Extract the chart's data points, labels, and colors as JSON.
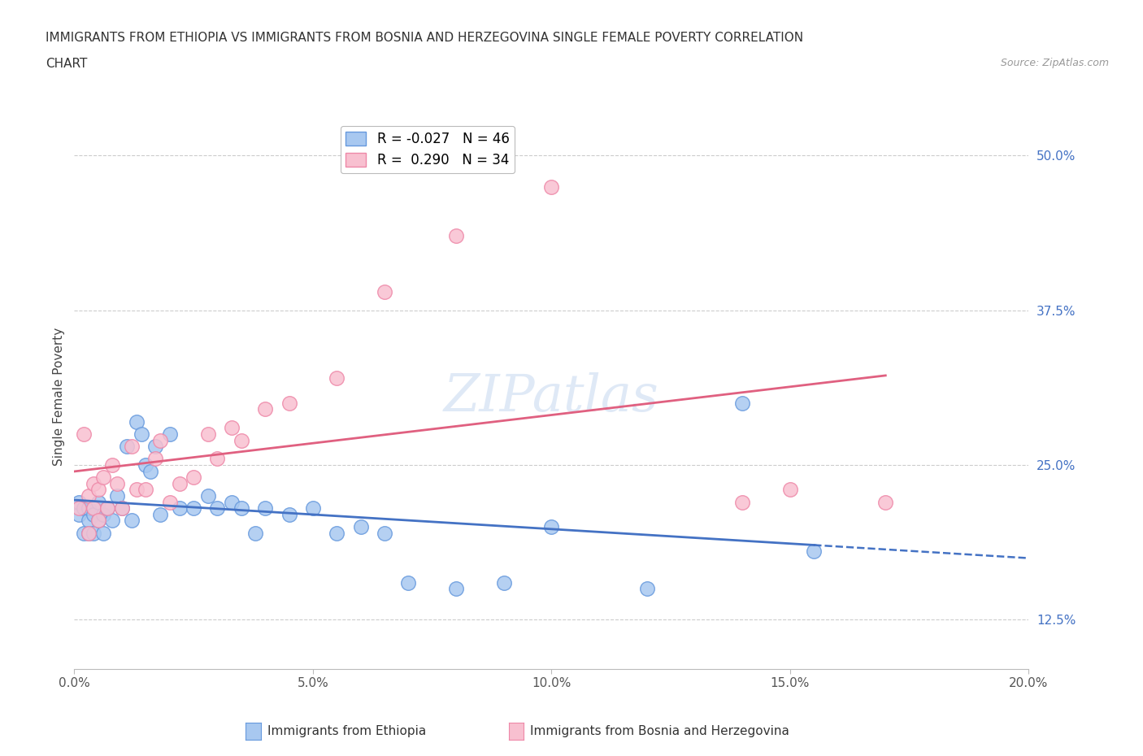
{
  "title_line1": "IMMIGRANTS FROM ETHIOPIA VS IMMIGRANTS FROM BOSNIA AND HERZEGOVINA SINGLE FEMALE POVERTY CORRELATION",
  "title_line2": "CHART",
  "source": "Source: ZipAtlas.com",
  "ethiopia_x": [
    0.001,
    0.001,
    0.002,
    0.002,
    0.003,
    0.003,
    0.003,
    0.004,
    0.004,
    0.005,
    0.005,
    0.006,
    0.006,
    0.007,
    0.008,
    0.009,
    0.01,
    0.011,
    0.012,
    0.013,
    0.014,
    0.015,
    0.016,
    0.017,
    0.018,
    0.02,
    0.022,
    0.025,
    0.028,
    0.03,
    0.033,
    0.035,
    0.038,
    0.04,
    0.045,
    0.05,
    0.055,
    0.06,
    0.065,
    0.07,
    0.08,
    0.09,
    0.1,
    0.12,
    0.14,
    0.155
  ],
  "ethiopia_y": [
    0.21,
    0.22,
    0.195,
    0.215,
    0.205,
    0.195,
    0.215,
    0.195,
    0.21,
    0.22,
    0.205,
    0.21,
    0.195,
    0.215,
    0.205,
    0.225,
    0.215,
    0.265,
    0.205,
    0.285,
    0.275,
    0.25,
    0.245,
    0.265,
    0.21,
    0.275,
    0.215,
    0.215,
    0.225,
    0.215,
    0.22,
    0.215,
    0.195,
    0.215,
    0.21,
    0.215,
    0.195,
    0.2,
    0.195,
    0.155,
    0.15,
    0.155,
    0.2,
    0.15,
    0.3,
    0.18
  ],
  "bosnia_x": [
    0.001,
    0.002,
    0.003,
    0.003,
    0.004,
    0.004,
    0.005,
    0.005,
    0.006,
    0.007,
    0.008,
    0.009,
    0.01,
    0.012,
    0.013,
    0.015,
    0.017,
    0.018,
    0.02,
    0.022,
    0.025,
    0.028,
    0.03,
    0.033,
    0.035,
    0.04,
    0.045,
    0.055,
    0.065,
    0.08,
    0.1,
    0.14,
    0.15,
    0.17
  ],
  "bosnia_y": [
    0.215,
    0.275,
    0.195,
    0.225,
    0.215,
    0.235,
    0.205,
    0.23,
    0.24,
    0.215,
    0.25,
    0.235,
    0.215,
    0.265,
    0.23,
    0.23,
    0.255,
    0.27,
    0.22,
    0.235,
    0.24,
    0.275,
    0.255,
    0.28,
    0.27,
    0.295,
    0.3,
    0.32,
    0.39,
    0.435,
    0.475,
    0.22,
    0.23,
    0.22
  ],
  "ethiopia_R": -0.027,
  "ethiopia_N": 46,
  "bosnia_R": 0.29,
  "bosnia_N": 34,
  "ethiopia_color": "#A8C8F0",
  "ethiopia_edge_color": "#6699DD",
  "bosnia_color": "#F8C0D0",
  "bosnia_edge_color": "#EE88A8",
  "ethiopia_line_color": "#4472C4",
  "bosnia_line_color": "#E06080",
  "xlim": [
    0.0,
    0.2
  ],
  "ylim": [
    0.085,
    0.525
  ],
  "xticks": [
    0.0,
    0.05,
    0.1,
    0.15,
    0.2
  ],
  "xtick_labels": [
    "0.0%",
    "5.0%",
    "10.0%",
    "15.0%",
    "20.0%"
  ],
  "ytick_positions": [
    0.125,
    0.25,
    0.375,
    0.5
  ],
  "ytick_labels": [
    "12.5%",
    "25.0%",
    "37.5%",
    "50.0%"
  ],
  "ylabel": "Single Female Poverty",
  "watermark": "ZIPatlas",
  "legend_ethiopia": "Immigrants from Ethiopia",
  "legend_bosnia": "Immigrants from Bosnia and Herzegovina",
  "background_color": "#FFFFFF",
  "grid_color": "#CCCCCC",
  "title_color": "#333333",
  "source_color": "#999999",
  "axis_tick_color": "#4472C4"
}
